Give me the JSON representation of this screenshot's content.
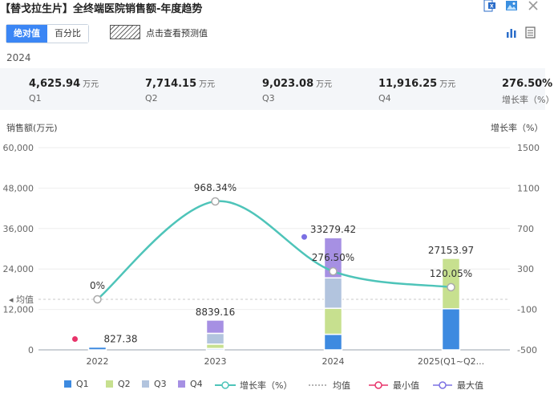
{
  "header": {
    "title": "【替戈拉生片】全终端医院销售额-年度趋势"
  },
  "toolbar": {
    "absolute_label": "绝对值",
    "percent_label": "百分比",
    "forecast_label": "点击查看预测值"
  },
  "summary": {
    "year": "2024",
    "unit": "万元",
    "items": [
      {
        "value": "4,625.94",
        "unit": "万元",
        "label": "Q1"
      },
      {
        "value": "7,714.15",
        "unit": "万元",
        "label": "Q2"
      },
      {
        "value": "9,023.08",
        "unit": "万元",
        "label": "Q3"
      },
      {
        "value": "11,916.25",
        "unit": "万元",
        "label": "Q4"
      },
      {
        "value": "276.50%",
        "unit": "",
        "label": "增长率（%）"
      }
    ]
  },
  "colors": {
    "q1": "#3d8ae0",
    "q2": "#c7e08f",
    "q3": "#b2c4de",
    "q4": "#a690e3",
    "growth": "#4ec4b9",
    "min": "#e8336a",
    "max": "#7b70e3",
    "accent": "#3b86f5"
  },
  "chart_data": {
    "type": "bar",
    "stacked": true,
    "categories": [
      "2022",
      "2023",
      "2024",
      "2025(Q1~Q2..."
    ],
    "series": [
      {
        "name": "Q1",
        "values": [
          827.38,
          400,
          4625.94,
          12200
        ]
      },
      {
        "name": "Q2",
        "values": [
          0,
          1300,
          7714.15,
          14953.97
        ]
      },
      {
        "name": "Q3",
        "values": [
          0,
          3200,
          9023.08,
          0
        ]
      },
      {
        "name": "Q4",
        "values": [
          0,
          3939.16,
          11916.25,
          0
        ]
      }
    ],
    "totals": [
      827.38,
      8839.16,
      33279.42,
      27153.97
    ],
    "total_labels": [
      "827.38",
      "8839.16",
      "33279.42",
      "27153.97"
    ],
    "growth": {
      "name": "增长率（%）",
      "values": [
        0,
        968.34,
        276.5,
        120.05
      ],
      "labels": [
        "0%",
        "968.34%",
        "276.50%",
        "120.05%"
      ]
    },
    "mean_label": "均值",
    "mean_value": 0.0,
    "min_point": {
      "category": "2022",
      "value": 827.38
    },
    "max_point": {
      "category": "2024",
      "value": 33279.42
    },
    "ylabel": "销售额(万元)",
    "y2label": "增长率（%）",
    "ylim": [
      0,
      60000
    ],
    "y2lim": [
      -500,
      1500
    ],
    "yticks": [
      "60,000",
      "48,000",
      "36,000",
      "24,000",
      "12,000",
      "0"
    ],
    "y2ticks": [
      "1500",
      "1100",
      "700",
      "300",
      "-100",
      "-500"
    ],
    "legend": [
      "Q1",
      "Q2",
      "Q3",
      "Q4",
      "增长率（%）",
      "均值",
      "最小值",
      "最大值"
    ],
    "legend_position": "bottom"
  }
}
